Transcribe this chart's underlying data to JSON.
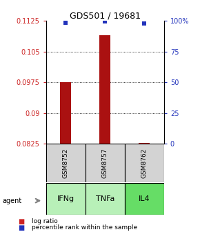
{
  "title": "GDS501 / 19681",
  "samples": [
    "GSM8752",
    "GSM8757",
    "GSM8762"
  ],
  "agents": [
    "IFNg",
    "TNFa",
    "IL4"
  ],
  "bar_values": [
    0.0975,
    0.109,
    0.0828
  ],
  "bar_baseline": 0.0825,
  "bar_color": "#aa1111",
  "dot_values": [
    0.1121,
    0.1124,
    0.1118
  ],
  "dot_color": "#2233bb",
  "ylim_left": [
    0.0825,
    0.1125
  ],
  "yticks_left": [
    0.0825,
    0.09,
    0.0975,
    0.105,
    0.1125
  ],
  "yticks_right_labels": [
    "0",
    "25",
    "50",
    "75",
    "100%"
  ],
  "yticks_right_vals": [
    0.0825,
    0.09,
    0.0975,
    0.105,
    0.1125
  ],
  "grid_yticks": [
    0.09,
    0.0975,
    0.105
  ],
  "agent_colors": [
    "#b8f0b8",
    "#b8f0b8",
    "#66dd66"
  ],
  "sample_box_color": "#d3d3d3",
  "legend_log_ratio_color": "#cc2222",
  "legend_percentile_color": "#2233bb",
  "left_label_color": "#cc2222",
  "right_label_color": "#2233bb"
}
